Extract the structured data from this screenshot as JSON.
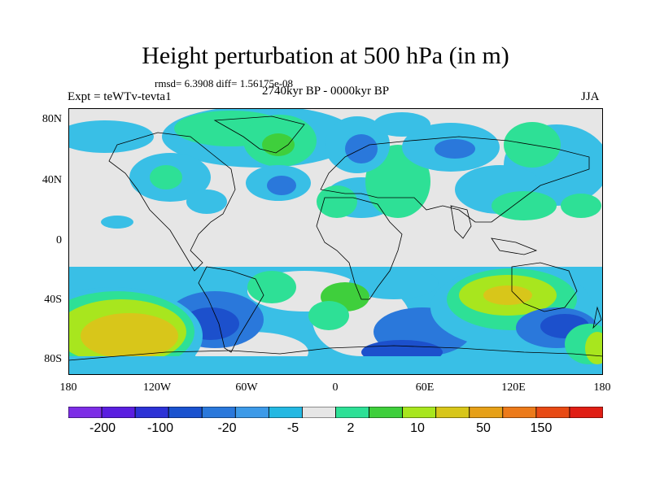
{
  "title": "Height perturbation at 500 hPa (in m)",
  "stats": "rmsd= 6.3908 diff= 1.56175e-08",
  "left_label": "Expt = teWTv-tevta1",
  "center_label": "2740kyr BP - 0000kyr BP",
  "right_label": "JJA",
  "y_ticks": [
    "80N",
    "40N",
    "0",
    "40S",
    "80S"
  ],
  "x_ticks": [
    "180",
    "120W",
    "60W",
    "0",
    "60E",
    "120E",
    "180"
  ],
  "colorbar": {
    "colors": [
      "#7d2ee6",
      "#5a1ee0",
      "#2c32d6",
      "#1a52cf",
      "#2a78db",
      "#3d9ae8",
      "#24b8e2",
      "#e6e6e6",
      "#2ee096",
      "#3fcf3c",
      "#a8e61e",
      "#d8c61a",
      "#e6a018",
      "#ec7a1a",
      "#e84a14",
      "#e01e14"
    ],
    "labels": [
      "-200",
      "-100",
      "-20",
      "-5",
      "2",
      "10",
      "50",
      "150"
    ]
  },
  "palette": {
    "neutral": "#e6e6e6",
    "light_blue": "#39bfe6",
    "blue": "#2a78db",
    "dark_blue": "#1c50cc",
    "teal": "#2ee096",
    "green": "#3fcf3c",
    "yellow_green": "#a8e61e",
    "orange_yellow": "#d8c61a"
  }
}
